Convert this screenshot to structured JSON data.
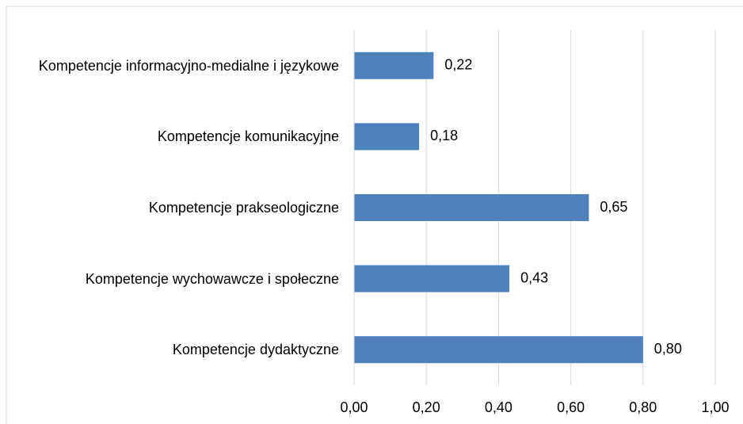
{
  "chart_data": {
    "type": "bar",
    "orientation": "horizontal",
    "categories": [
      "Kompetencje informacyjno-medialne i językowe",
      "Kompetencje komunikacyjne",
      "Kompetencje prakseologiczne",
      "Kompetencje wychowawcze i społeczne",
      "Kompetencje dydaktyczne"
    ],
    "values": [
      0.22,
      0.18,
      0.65,
      0.43,
      0.8
    ],
    "value_labels": [
      "0,22",
      "0,18",
      "0,65",
      "0,43",
      "0,80"
    ],
    "color": "#4f81bd",
    "xlim": [
      0,
      1
    ],
    "xticks": [
      {
        "value": 0,
        "label": "0,00"
      },
      {
        "value": 0.2,
        "label": "0,20"
      },
      {
        "value": 0.4,
        "label": "0,40"
      },
      {
        "value": 0.6,
        "label": "0,60"
      },
      {
        "value": 0.8,
        "label": "0,80"
      },
      {
        "value": 1,
        "label": "1,00"
      }
    ],
    "grid": true
  }
}
